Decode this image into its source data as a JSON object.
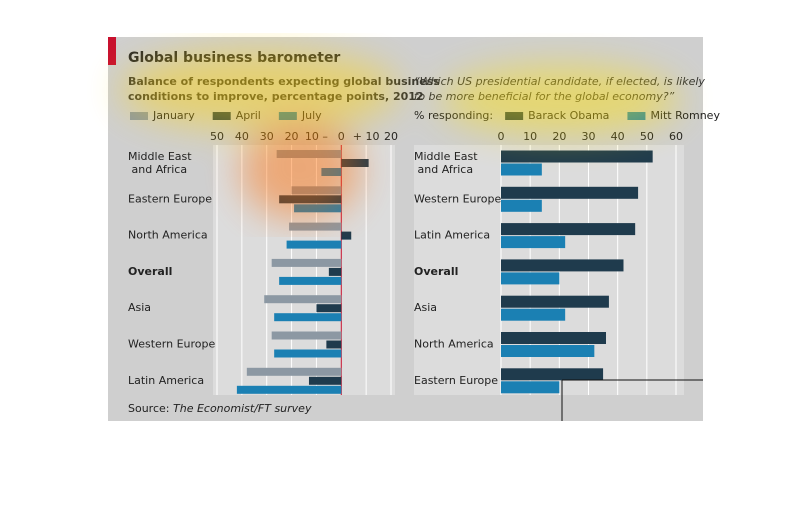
{
  "title": "Global business barometer",
  "source_label": "Source:",
  "source_text": "The Economist/FT survey",
  "chart_data": [
    {
      "type": "bar",
      "orientation": "horizontal",
      "subtitle": [
        "Balance of respondents expecting global business",
        "conditions to improve, percentage points, 2012"
      ],
      "categories": [
        "Middle East and Africa",
        "Eastern Europe",
        "North America",
        "Overall",
        "Asia",
        "Western Europe",
        "Latin America"
      ],
      "bold_category": "Overall",
      "series": [
        {
          "name": "January",
          "color": "#8c98a3",
          "values": [
            -26,
            -20,
            -21,
            -28,
            -31,
            -28,
            -38
          ]
        },
        {
          "name": "April",
          "color": "#1f3b4d",
          "values": [
            11,
            -25,
            4,
            -5,
            -10,
            -6,
            -13
          ]
        },
        {
          "name": "July",
          "color": "#1b80b3",
          "values": [
            -8,
            -19,
            -22,
            -25,
            -27,
            -27,
            -42
          ]
        }
      ],
      "xlim": [
        -50,
        20
      ],
      "xticks": [
        {
          "value": -50,
          "label": "50"
        },
        {
          "value": -40,
          "label": "40"
        },
        {
          "value": -30,
          "label": "30"
        },
        {
          "value": -20,
          "label": "20"
        },
        {
          "value": -10,
          "label": "10 –"
        },
        0,
        {
          "value": 10,
          "label": "+ 10"
        },
        20
      ],
      "grid": true
    },
    {
      "type": "bar",
      "orientation": "horizontal",
      "subtitle": [
        "“Which US presidential candidate, if elected, is likely",
        "to be more beneficial for the global economy?”"
      ],
      "legend_title": "% responding:",
      "categories": [
        "Middle East and Africa",
        "Western Europe",
        "Latin America",
        "Overall",
        "Asia",
        "North America",
        "Eastern Europe"
      ],
      "bold_category": "Overall",
      "series": [
        {
          "name": "Barack Obama",
          "color": "#1f3b4d",
          "values": [
            52,
            47,
            46,
            42,
            37,
            36,
            35
          ]
        },
        {
          "name": "Mitt Romney",
          "color": "#1b80b3",
          "values": [
            14,
            14,
            22,
            20,
            22,
            32,
            20
          ]
        }
      ],
      "xlim": [
        0,
        60
      ],
      "xticks": [
        0,
        10,
        20,
        30,
        40,
        50,
        60
      ],
      "grid": true
    }
  ]
}
